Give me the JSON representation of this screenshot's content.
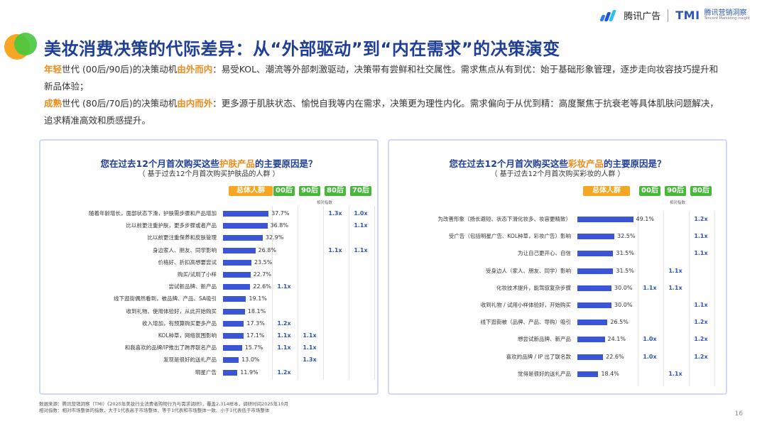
{
  "logo": {
    "tencent_ads": "腾讯广告",
    "tmi": "TMI",
    "tmi_cn": "腾讯营销洞察",
    "tmi_en": "Tencent Marketing Insight"
  },
  "title": "美妆消费决策的代际差异：从“外部驱动”到“内在需求”的决策演变",
  "desc1": {
    "a": "年轻",
    "b": "世代 (00后/90后)的决策动机",
    "c": "由外而内",
    "d": "：易受KOL、潮流等外部刺激驱动，决策带有尝鲜和社交属性。需求焦点从有到优：始于基础形象管理，逐步走向妆容技巧提升和新品体验；"
  },
  "desc2": {
    "a": "成熟",
    "b": "世代 (80后/70后)的决策动机",
    "c": "由内而外",
    "d": "：更多源于肌肤状态、愉悦自我等内在需求，决策更为理性内化。需求偏向于从优到精：高度聚焦于抗衰老等具体肌肤问题解决，追求精准高效和质感提升。"
  },
  "relative_index_label": "相对指数",
  "footer": {
    "line1": "数据来源：腾讯营销洞察（TMI）《2025年美妆行业消费者购物行为与需求调研》，覆盖2,314样本，调研时间2025年10月",
    "line2": "相对指数：相对市场整体的指数，大于1代表高于市场整体、等于1代表和市场整体一致、小于1代表低于市场整体"
  },
  "page_number": "16",
  "colors": {
    "bar": "#3a56d6",
    "title": "#1f3f97",
    "highlight": "#f08a1c",
    "total_header": "#f5a623",
    "gen_header": "#47b93a"
  },
  "chart_data": [
    {
      "type": "bar",
      "orientation": "horizontal",
      "title_pre": "您在过去12个月首次购买这些",
      "title_hl": "护肤产品",
      "title_post": "的主要原因是？",
      "subtitle": "（ 基于过去12个月首次购买护肤品的人群 ）",
      "column_headers": [
        "总体人群",
        "00后",
        "90后",
        "80后",
        "70后"
      ],
      "categories": [
        "随着年龄增长，面部状态下滑，护肤需步骤和产品增加",
        "比以前更注重护肤，更多步骤或者产品",
        "比以前更注重保养和皮肤管理",
        "身边家人、朋友、同学影响",
        "价格好、折扣高想要尝试",
        "购买/试用了小样",
        "尝试新品牌、新产品",
        "线下逛街偶然看到，被品牌、产品、SA吸引",
        "收到礼物、使用体验好，从此开始购买",
        "收入增加，有预算购买更多产品",
        "KOL种草，网络氛围影响",
        "和我喜欢的品牌/IP推出了跨界联名产品",
        "发现是很好的送礼产品",
        "明星广告"
      ],
      "values": [
        37.7,
        36.8,
        32.9,
        26.8,
        23.5,
        22.7,
        22.6,
        19.1,
        18.1,
        17.3,
        17.1,
        15.7,
        13.0,
        11.9
      ],
      "value_labels": [
        "37.7%",
        "36.8%",
        "32.9%",
        "26.8%",
        "23.5%",
        "22.7%",
        "22.6%",
        "19.1%",
        "18.1%",
        "17.3%",
        "17.1%",
        "15.7%",
        "13.0%",
        "11.9%"
      ],
      "xlim": [
        0,
        40
      ],
      "relative_index": [
        {
          "row": 0,
          "col": 2,
          "text": "1.3x"
        },
        {
          "row": 0,
          "col": 3,
          "text": "1.0x"
        },
        {
          "row": 1,
          "col": 3,
          "text": "1.1x"
        },
        {
          "row": 3,
          "col": 2,
          "text": "1.1x"
        },
        {
          "row": 3,
          "col": 3,
          "text": "1.1x"
        },
        {
          "row": 6,
          "col": 0,
          "text": "1.1x"
        },
        {
          "row": 9,
          "col": 0,
          "text": "1.2x"
        },
        {
          "row": 10,
          "col": 0,
          "text": "1.1x"
        },
        {
          "row": 10,
          "col": 1,
          "text": "1.1x"
        },
        {
          "row": 11,
          "col": 0,
          "text": "1.1x"
        },
        {
          "row": 11,
          "col": 1,
          "text": "1.1x"
        },
        {
          "row": 12,
          "col": 1,
          "text": "1.3x"
        },
        {
          "row": 13,
          "col": 0,
          "text": "1.2x"
        }
      ]
    },
    {
      "type": "bar",
      "orientation": "horizontal",
      "title_pre": "您在过去12个月首次购买这些",
      "title_hl": "彩妆产品",
      "title_post": "的主要原因是？",
      "subtitle": "（ 基于过去12个月首次购买彩妆的人群 ）",
      "column_headers": [
        "总体人群",
        "00后",
        "90后",
        "80后"
      ],
      "categories": [
        "为改善形象（扬长避短、状态下滑化妆多、妆容更精致）",
        "受广告（包括明星广告、KOL种草，彩妆广告）影响",
        "为让自己更开心、自信",
        "受身边人（家人、朋友、同学）影响",
        "化妆技术提升，能驾驭复杂步骤",
        "收到礼物 / 试用小样体验好，开始购买",
        "线下逛街被（品牌、产品、导购）吸引",
        "想尝试新品牌、新产品",
        "喜欢的品牌 / IP 出了联名款",
        "觉得是很好的送礼产品"
      ],
      "values": [
        49.1,
        32.5,
        31.5,
        31.5,
        30.0,
        30.0,
        26.5,
        24.1,
        22.6,
        18.4
      ],
      "value_labels": [
        "49.1%",
        "32.5%",
        "31.5%",
        "31.5%",
        "30.0%",
        "30.0%",
        "26.5%",
        "24.1%",
        "22.6%",
        "18.4%"
      ],
      "xlim": [
        0,
        50
      ],
      "relative_index": [
        {
          "row": 0,
          "col": 2,
          "text": "1.2x"
        },
        {
          "row": 1,
          "col": 2,
          "text": "1.1x"
        },
        {
          "row": 2,
          "col": 2,
          "text": "1.1x"
        },
        {
          "row": 3,
          "col": 1,
          "text": "1.1x"
        },
        {
          "row": 4,
          "col": 0,
          "text": "1.1x"
        },
        {
          "row": 4,
          "col": 1,
          "text": "1.1x"
        },
        {
          "row": 5,
          "col": 2,
          "text": "1.1x"
        },
        {
          "row": 6,
          "col": 2,
          "text": "1.2x"
        },
        {
          "row": 7,
          "col": 0,
          "text": "1.0x"
        },
        {
          "row": 7,
          "col": 2,
          "text": "1.2x"
        },
        {
          "row": 8,
          "col": 0,
          "text": "1.0x"
        },
        {
          "row": 8,
          "col": 2,
          "text": "1.2x"
        },
        {
          "row": 9,
          "col": 1,
          "text": "1.1x"
        }
      ]
    }
  ]
}
